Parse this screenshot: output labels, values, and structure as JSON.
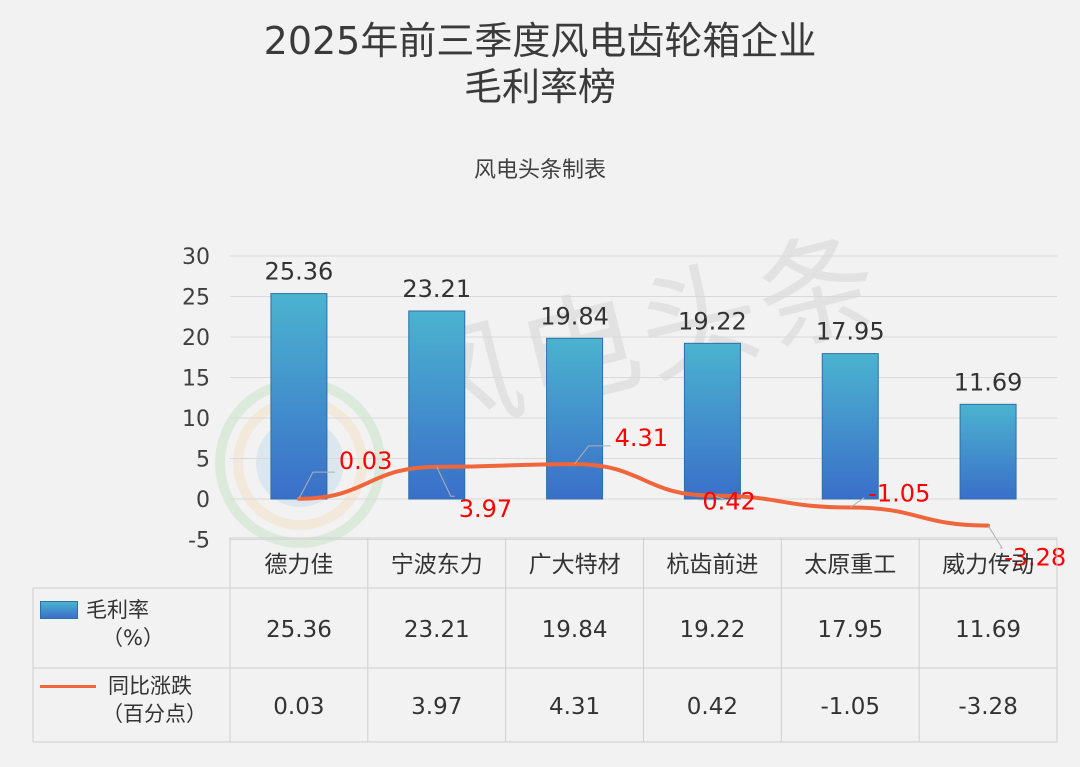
{
  "title_line1": "2025年前三季度风电齿轮箱企业",
  "title_line2": "毛利率榜",
  "subtitle": "风电头条制表",
  "watermark_text": "风电头条",
  "legend": {
    "bar_line1": "毛利率",
    "bar_line2": "（%）",
    "line_line1": "同比涨跌",
    "line_line2": "（百分点）"
  },
  "colors": {
    "bar_top": "#4bb3cf",
    "bar_bottom": "#3a6fc9",
    "line": "#f0663a",
    "label_red": "#ff0000",
    "grid": "#d9d9d9"
  },
  "chart_data": {
    "type": "bar",
    "categories": [
      "德力佳",
      "宁波东力",
      "广大特材",
      "杭齿前进",
      "太原重工",
      "威力传动"
    ],
    "series": [
      {
        "name": "毛利率（%）",
        "type": "bar",
        "values": [
          25.36,
          23.21,
          19.84,
          19.22,
          17.95,
          11.69
        ]
      },
      {
        "name": "同比涨跌（百分点）",
        "type": "line",
        "values": [
          0.03,
          3.97,
          4.31,
          0.42,
          -1.05,
          -3.28
        ]
      }
    ],
    "ylim": [
      -5,
      30
    ],
    "yticks": [
      -5,
      0,
      5,
      10,
      15,
      20,
      25,
      30
    ],
    "bar_labels": [
      "25.36",
      "23.21",
      "19.84",
      "19.22",
      "17.95",
      "11.69"
    ],
    "line_labels": [
      "0.03",
      "3.97",
      "4.31",
      "0.42",
      "-1.05",
      "-3.28"
    ],
    "table": {
      "rows": [
        [
          "25.36",
          "23.21",
          "19.84",
          "19.22",
          "17.95",
          "11.69"
        ],
        [
          "0.03",
          "3.97",
          "4.31",
          "0.42",
          "-1.05",
          "-3.28"
        ]
      ]
    },
    "grid": true
  }
}
